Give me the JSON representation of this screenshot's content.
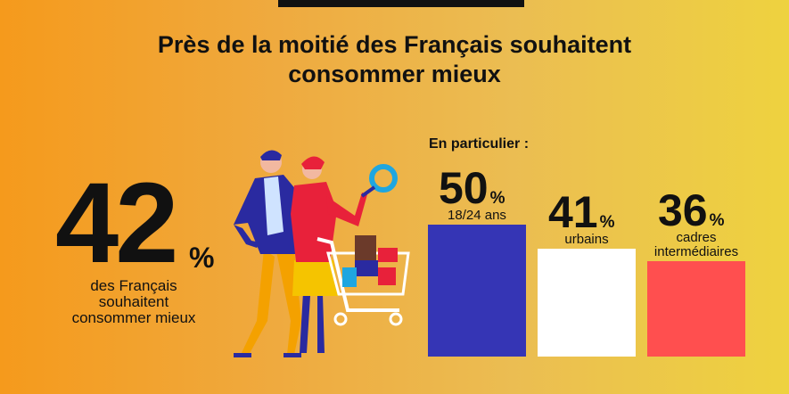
{
  "title": {
    "line1": "Près de la moitié des Français souhaitent",
    "line2": "consommer mieux"
  },
  "headline": {
    "value": "42",
    "unit": "%",
    "caption": [
      "des Français",
      "souhaitent",
      "consommer mieux"
    ]
  },
  "detail_heading": "En particulier :",
  "chart_data": {
    "type": "bar",
    "categories": [
      "18/24 ans",
      "urbains",
      "cadres intermédiaires"
    ],
    "values": [
      50,
      41,
      36
    ],
    "labels": [
      [
        "18/24 ans"
      ],
      [
        "urbains"
      ],
      [
        "cadres",
        "intermédiaires"
      ]
    ],
    "value_texts": [
      "50",
      "41",
      "36"
    ],
    "unit": "%",
    "colors": [
      "#3535b5",
      "#ffffff",
      "#ff4f4f"
    ],
    "ylim": [
      0,
      50
    ],
    "title": "",
    "xlabel": "",
    "ylabel": ""
  },
  "colors": {
    "background_left": "#f59a1c",
    "background_right": "#eed23f",
    "text": "#111111"
  },
  "illustration": "couple-with-shopping-cart-and-magnifying-glass"
}
